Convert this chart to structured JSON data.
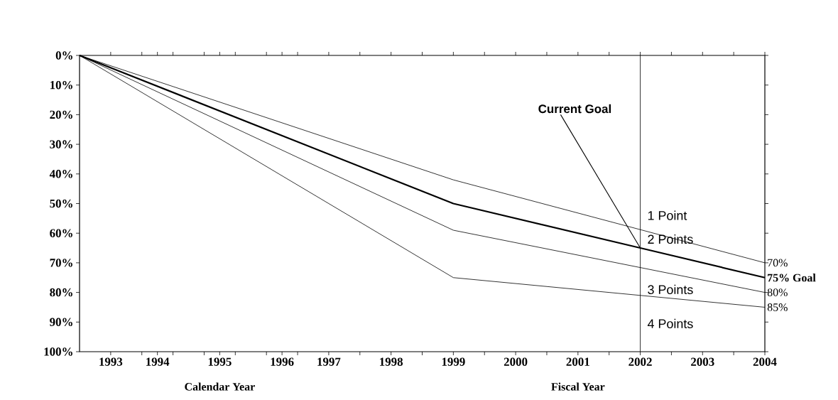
{
  "chart_data": {
    "type": "line",
    "xlim": [
      1993,
      2004
    ],
    "ylim": [
      100,
      0
    ],
    "xticks": [
      {
        "value": 1993.5,
        "label": "1993"
      },
      {
        "value": 1994.25,
        "label": "1994"
      },
      {
        "value": 1995.25,
        "label": "1995"
      },
      {
        "value": 1996.25,
        "label": "1996"
      },
      1997,
      1998,
      1999,
      2000,
      2001,
      2002,
      2003,
      2004,
      {
        "value": 1994,
        "label": null
      },
      {
        "value": 1994.5,
        "label": null
      },
      {
        "value": 1995,
        "label": null
      },
      {
        "value": 1995.5,
        "label": null
      },
      {
        "value": 1996,
        "label": null
      },
      {
        "value": 1996.5,
        "label": null
      },
      {
        "value": 1997.5,
        "label": null
      },
      {
        "value": 1998.5,
        "label": null
      },
      {
        "value": 1999.5,
        "label": null
      },
      {
        "value": 2000.5,
        "label": null
      },
      {
        "value": 2001.5,
        "label": null
      },
      {
        "value": 2002.5,
        "label": null
      },
      {
        "value": 2003.5,
        "label": null
      }
    ],
    "yticks": [
      {
        "value": 0,
        "label": "0%"
      },
      {
        "value": 10,
        "label": "10%"
      },
      {
        "value": 20,
        "label": "20%"
      },
      {
        "value": 30,
        "label": "30%"
      },
      {
        "value": 40,
        "label": "40%"
      },
      {
        "value": 50,
        "label": "50%"
      },
      {
        "value": 60,
        "label": "60%"
      },
      {
        "value": 70,
        "label": "70%"
      },
      {
        "value": 80,
        "label": "80%"
      },
      {
        "value": 90,
        "label": "90%"
      },
      {
        "value": 100,
        "label": "100%"
      }
    ],
    "series": [
      {
        "name": "70%",
        "color": "#000000",
        "x": [
          1993,
          1999,
          2004
        ],
        "values": [
          0,
          42,
          70
        ]
      },
      {
        "name": "**75% Goal**",
        "color": "#000000",
        "x": [
          1993,
          1999,
          2002,
          2004
        ],
        "values": [
          0,
          50,
          65,
          75
        ]
      },
      {
        "name": "80%",
        "color": "#000000",
        "x": [
          1993,
          1999,
          2004
        ],
        "values": [
          0,
          59,
          80
        ]
      },
      {
        "name": "85%",
        "color": "#000000",
        "x": [
          1993,
          1999,
          2004
        ],
        "values": [
          0,
          75,
          85
        ]
      }
    ],
    "legend": "right",
    "ref_lines": [
      {
        "axis": "x",
        "value": 2002
      }
    ],
    "annotations": [
      {
        "text": "Current Goal",
        "x": 2002,
        "y": 65
      },
      "1 Point",
      "2 Points",
      "3 Points",
      "4 Points",
      "Calendar Year",
      "Fiscal Year"
    ]
  }
}
